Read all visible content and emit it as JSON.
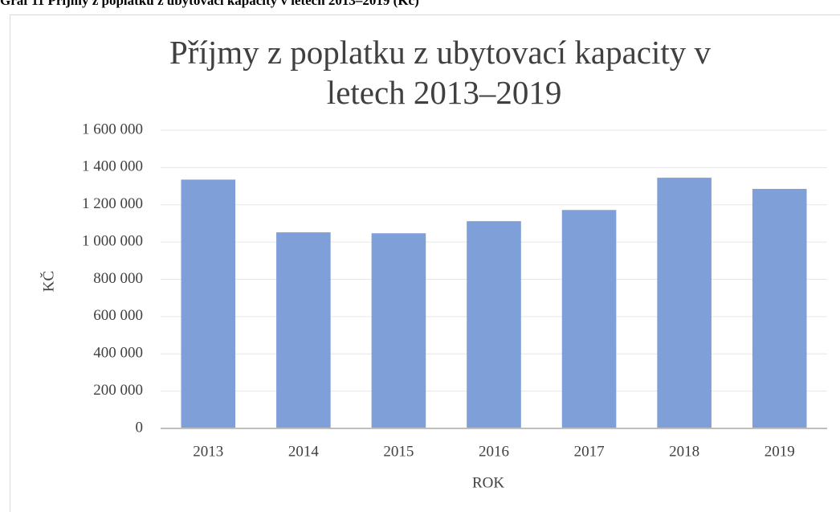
{
  "caption": "Graf 11 Příjmy z poplatku z ubytovací kapacity v letech 2013–2019 (Kč)",
  "chart_data": {
    "type": "bar",
    "title": "Příjmy z poplatku z ubytovací kapacity v letech 2013–2019",
    "x_label": "ROK",
    "y_label": "KČ",
    "categories": [
      "2013",
      "2014",
      "2015",
      "2016",
      "2017",
      "2018",
      "2019"
    ],
    "values": [
      1335000,
      1052000,
      1047000,
      1112000,
      1172000,
      1345000,
      1285000
    ],
    "color": "#7f9fd8",
    "ylim": [
      0,
      1600000
    ],
    "yticks": [
      0,
      {
        "value": 200000,
        "label": "200 000"
      },
      {
        "value": 400000,
        "label": "400 000"
      },
      {
        "value": 600000,
        "label": "600 000"
      },
      {
        "value": 800000,
        "label": "800 000"
      },
      {
        "value": 1000000,
        "label": "1 000 000"
      },
      {
        "value": 1200000,
        "label": "1 200 000"
      },
      {
        "value": 1400000,
        "label": "1 400 000"
      },
      {
        "value": 1600000,
        "label": "1 600 000"
      }
    ],
    "grid": true
  }
}
